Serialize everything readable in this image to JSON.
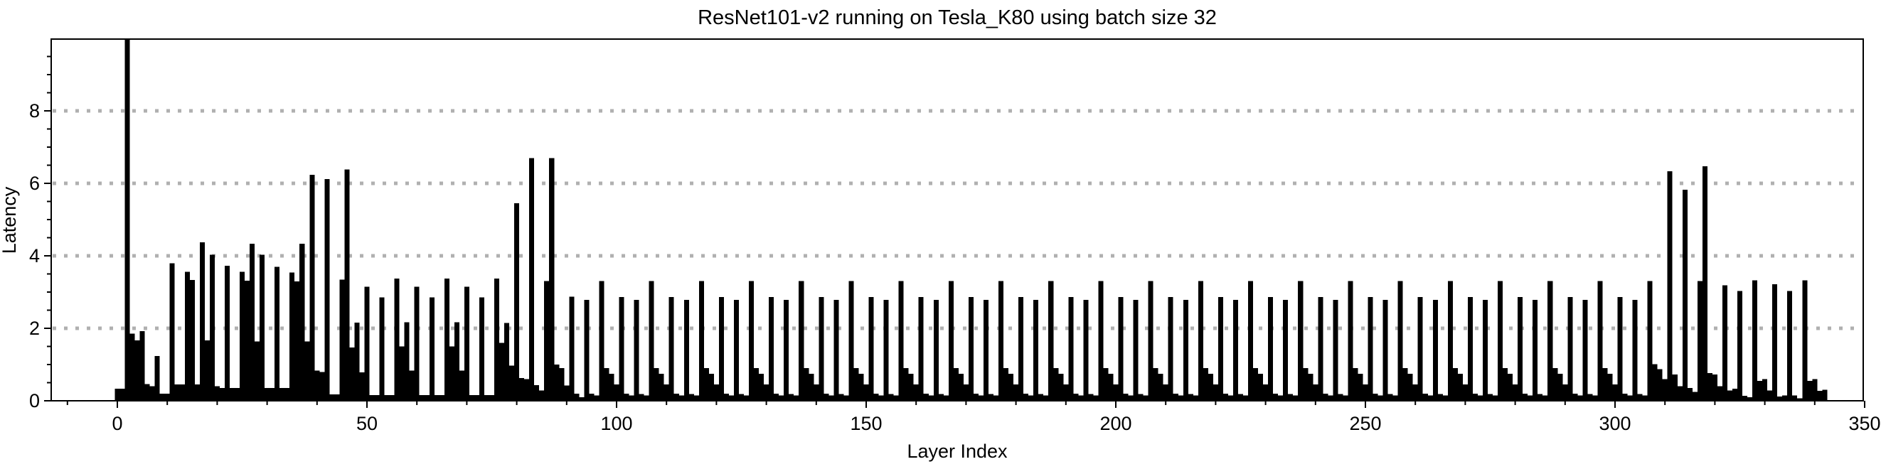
{
  "page": {
    "background": "#ffffff"
  },
  "chart_data": {
    "type": "bar",
    "title": "ResNet101-v2 running on Tesla_K80 using batch size 32",
    "xlabel": "Layer Index",
    "ylabel": "Latency",
    "legend": null,
    "bar_color": "#000000",
    "axis_color": "#000000",
    "gridline_color": "#b0b0b0",
    "gridline_style": "dotted",
    "x_axis": {
      "label": "Layer Index",
      "ticks": [
        0,
        50,
        100,
        150,
        200,
        250,
        300,
        350
      ],
      "minor_tick_step": 10,
      "range": [
        -13.3,
        349.8
      ]
    },
    "y_axis": {
      "label": "Latency",
      "ticks": [
        0,
        2,
        4,
        6,
        8
      ],
      "minor_tick_step": 0.5,
      "gridlines": [
        2,
        4,
        6,
        8
      ],
      "range": [
        0,
        9.98
      ]
    },
    "layer_index_start": 0,
    "n_bars": 343,
    "values": [
      0.33,
      0.33,
      10.2,
      1.85,
      1.67,
      1.92,
      0.46,
      0.4,
      1.24,
      0.2,
      0.2,
      3.79,
      0.45,
      0.45,
      3.56,
      3.33,
      0.45,
      4.37,
      1.67,
      4.03,
      0.4,
      0.35,
      3.73,
      0.35,
      0.35,
      3.56,
      3.31,
      4.33,
      1.64,
      4.03,
      0.35,
      0.35,
      3.7,
      0.35,
      0.35,
      3.54,
      3.29,
      4.33,
      1.64,
      6.24,
      0.83,
      0.79,
      6.12,
      0.18,
      0.18,
      3.34,
      6.38,
      1.47,
      2.16,
      0.78,
      3.15,
      0.16,
      0.16,
      2.85,
      0.16,
      0.16,
      3.37,
      1.5,
      2.17,
      0.83,
      3.15,
      0.16,
      0.16,
      2.85,
      0.16,
      0.16,
      3.37,
      1.5,
      2.17,
      0.83,
      3.15,
      0.16,
      0.16,
      2.85,
      0.16,
      0.16,
      3.37,
      1.6,
      2.15,
      0.97,
      5.45,
      0.63,
      0.6,
      6.7,
      0.43,
      0.28,
      3.3,
      6.7,
      1.0,
      0.9,
      0.42,
      2.87,
      0.2,
      0.1,
      2.78,
      0.2,
      0.15,
      3.3,
      0.9,
      0.75,
      0.45,
      2.86,
      0.2,
      0.15,
      2.78,
      0.19,
      0.15,
      3.3,
      0.9,
      0.75,
      0.45,
      2.86,
      0.2,
      0.15,
      2.78,
      0.19,
      0.15,
      3.3,
      0.9,
      0.75,
      0.45,
      2.86,
      0.2,
      0.15,
      2.78,
      0.19,
      0.15,
      3.3,
      0.9,
      0.75,
      0.45,
      2.86,
      0.2,
      0.15,
      2.78,
      0.19,
      0.15,
      3.3,
      0.9,
      0.75,
      0.45,
      2.86,
      0.2,
      0.15,
      2.78,
      0.19,
      0.15,
      3.3,
      0.9,
      0.75,
      0.45,
      2.86,
      0.2,
      0.15,
      2.78,
      0.19,
      0.15,
      3.3,
      0.9,
      0.75,
      0.45,
      2.86,
      0.2,
      0.15,
      2.78,
      0.19,
      0.15,
      3.3,
      0.9,
      0.75,
      0.45,
      2.86,
      0.2,
      0.15,
      2.78,
      0.19,
      0.15,
      3.3,
      0.9,
      0.75,
      0.45,
      2.86,
      0.2,
      0.15,
      2.78,
      0.19,
      0.15,
      3.3,
      0.9,
      0.75,
      0.45,
      2.86,
      0.2,
      0.15,
      2.78,
      0.19,
      0.15,
      3.3,
      0.9,
      0.75,
      0.45,
      2.86,
      0.2,
      0.15,
      2.78,
      0.19,
      0.15,
      3.3,
      0.9,
      0.75,
      0.45,
      2.86,
      0.2,
      0.15,
      2.78,
      0.19,
      0.15,
      3.3,
      0.9,
      0.75,
      0.45,
      2.86,
      0.2,
      0.15,
      2.78,
      0.19,
      0.15,
      3.3,
      0.9,
      0.75,
      0.45,
      2.86,
      0.2,
      0.15,
      2.78,
      0.19,
      0.15,
      3.3,
      0.9,
      0.75,
      0.45,
      2.86,
      0.2,
      0.15,
      2.78,
      0.19,
      0.15,
      3.3,
      0.9,
      0.75,
      0.45,
      2.86,
      0.2,
      0.15,
      2.78,
      0.19,
      0.15,
      3.3,
      0.9,
      0.75,
      0.45,
      2.86,
      0.2,
      0.15,
      2.78,
      0.19,
      0.15,
      3.3,
      0.9,
      0.75,
      0.45,
      2.86,
      0.2,
      0.15,
      2.78,
      0.19,
      0.15,
      3.3,
      0.9,
      0.75,
      0.45,
      2.86,
      0.2,
      0.15,
      2.78,
      0.19,
      0.15,
      3.3,
      0.9,
      0.75,
      0.45,
      2.86,
      0.2,
      0.15,
      2.78,
      0.19,
      0.15,
      3.3,
      0.9,
      0.75,
      0.45,
      2.86,
      0.2,
      0.15,
      2.78,
      0.19,
      0.15,
      3.3,
      1.01,
      0.87,
      0.6,
      6.33,
      0.73,
      0.4,
      5.82,
      0.35,
      0.25,
      3.3,
      6.47,
      0.76,
      0.73,
      0.4,
      3.19,
      0.28,
      0.33,
      3.03,
      0.14,
      0.1,
      3.32,
      0.55,
      0.6,
      0.28,
      3.22,
      0.12,
      0.15,
      3.03,
      0.15,
      0.07,
      3.32,
      0.55,
      0.6,
      0.27,
      0.3
    ]
  }
}
